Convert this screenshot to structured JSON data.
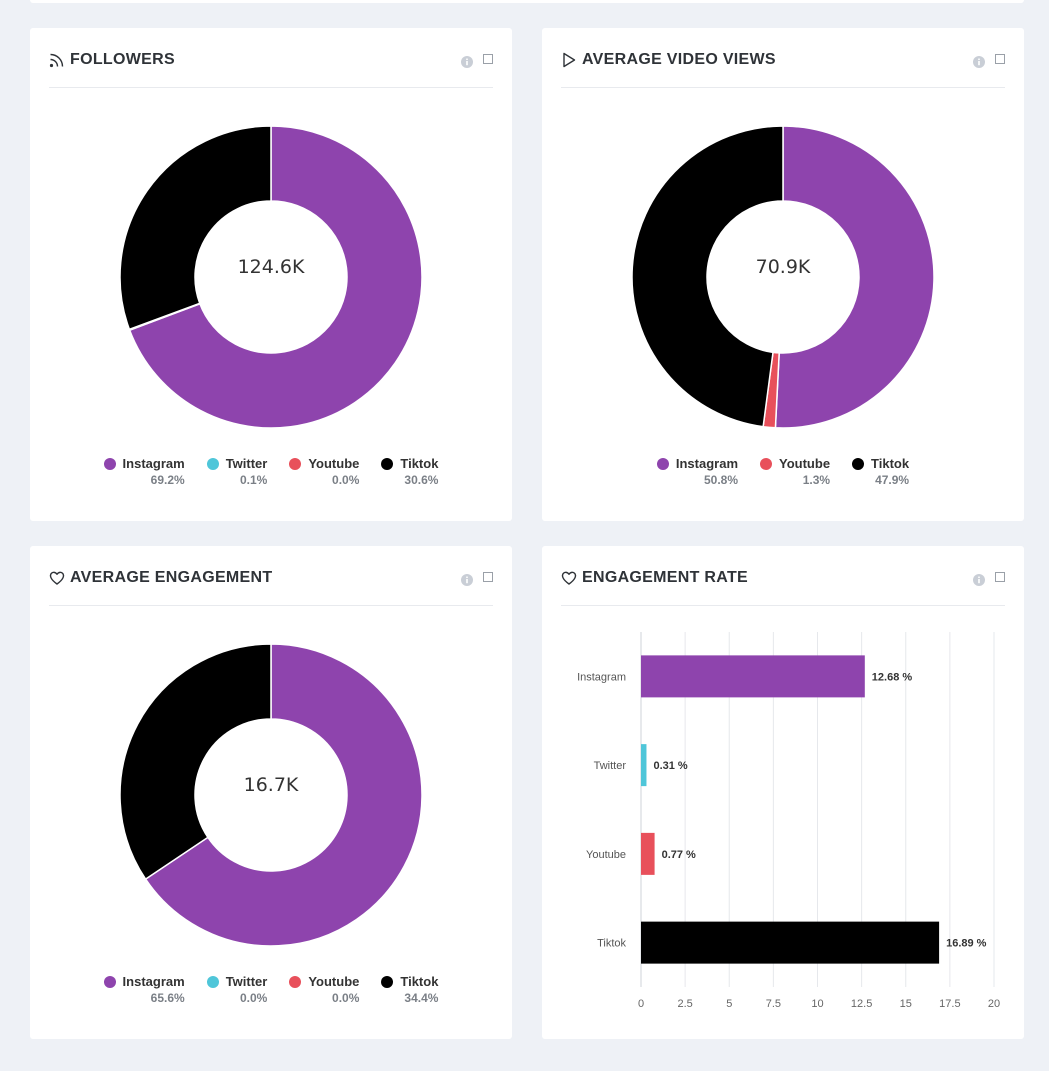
{
  "colors": {
    "instagram": "#8e44ad",
    "twitter": "#4fc6d9",
    "youtube": "#e8505b",
    "tiktok": "#000000"
  },
  "cards": [
    {
      "title": "FOLLOWERS",
      "icon": "rss-icon",
      "center_value": "124.6K",
      "chart_data": {
        "type": "pie",
        "categories": [
          "Instagram",
          "Twitter",
          "Youtube",
          "Tiktok"
        ],
        "values": [
          69.2,
          0.1,
          0.0,
          30.6
        ],
        "labels": [
          "69.2%",
          "0.1%",
          "0.0%",
          "30.6%"
        ]
      }
    },
    {
      "title": "AVERAGE VIDEO VIEWS",
      "icon": "play-icon",
      "center_value": "70.9K",
      "chart_data": {
        "type": "pie",
        "categories": [
          "Instagram",
          "Youtube",
          "Tiktok"
        ],
        "values": [
          50.8,
          1.3,
          47.9
        ],
        "labels": [
          "50.8%",
          "1.3%",
          "47.9%"
        ]
      }
    },
    {
      "title": "AVERAGE ENGAGEMENT",
      "icon": "heart-icon",
      "center_value": "16.7K",
      "chart_data": {
        "type": "pie",
        "categories": [
          "Instagram",
          "Twitter",
          "Youtube",
          "Tiktok"
        ],
        "values": [
          65.6,
          0.0,
          0.0,
          34.4
        ],
        "labels": [
          "65.6%",
          "0.0%",
          "0.0%",
          "34.4%"
        ]
      }
    },
    {
      "title": "ENGAGEMENT RATE",
      "icon": "heart-icon",
      "chart_data": {
        "type": "bar",
        "orientation": "horizontal",
        "categories": [
          "Instagram",
          "Twitter",
          "Youtube",
          "Tiktok"
        ],
        "values": [
          12.68,
          0.31,
          0.77,
          16.89
        ],
        "value_labels": [
          "12.68 %",
          "0.31 %",
          "0.77 %",
          "16.89 %"
        ],
        "xlim": [
          0,
          20
        ],
        "xticks": [
          "0",
          "2.5",
          "5",
          "7.5",
          "10",
          "12.5",
          "15",
          "17.5",
          "20"
        ],
        "grid": true
      }
    }
  ]
}
